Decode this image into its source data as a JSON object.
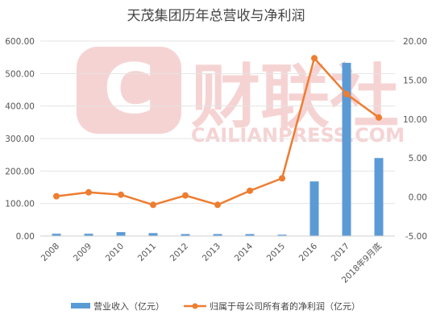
{
  "watermark": {
    "logo_text": "财联社",
    "sub_text": "CAILIANPRESS.COM",
    "color": "#f6d3d3"
  },
  "colors": {
    "bar": "#5b9bd5",
    "line": "#ed7d31",
    "grid": "#e3e3e3",
    "axis": "#cfcfcf"
  },
  "chart_data": {
    "type": "bar",
    "title": "天茂集团历年总营收与净利润",
    "categories": [
      "2008",
      "2009",
      "2010",
      "2011",
      "2012",
      "2013",
      "2014",
      "2015",
      "2016",
      "2017",
      "2018年9月底"
    ],
    "y_left": {
      "min": 0,
      "max": 600,
      "ticks": [
        "0.00",
        "100.00",
        "200.00",
        "300.00",
        "400.00",
        "500.00",
        "600.00"
      ]
    },
    "y_right": {
      "min": -5,
      "max": 20,
      "ticks": [
        "-5.00",
        "0.00",
        "5.00",
        "10.00",
        "15.00",
        "20.00"
      ]
    },
    "grid": true,
    "legend_position": "bottom",
    "series": [
      {
        "name": "营业收入（亿元）",
        "type": "bar",
        "axis": "left",
        "values": [
          7,
          7,
          12,
          9,
          6,
          6,
          6,
          4,
          168,
          533,
          240
        ]
      },
      {
        "name": "归属于母公司所有者的净利润（亿元）",
        "type": "line",
        "axis": "right",
        "values": [
          0.1,
          0.6,
          0.3,
          -1.0,
          0.2,
          -1.0,
          0.8,
          2.4,
          17.8,
          13.2,
          10.2
        ]
      }
    ]
  }
}
